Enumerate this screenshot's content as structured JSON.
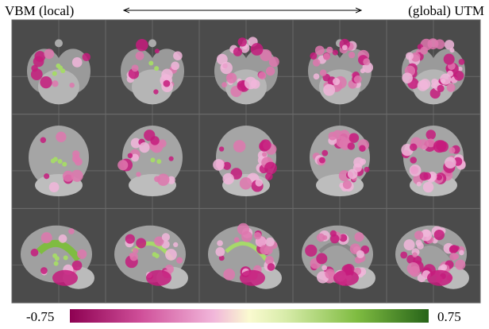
{
  "header": {
    "left": "VBM (local)",
    "right": "(global) UTM"
  },
  "colorbar": {
    "min_label": "-0.75",
    "max_label": "0.75"
  }
}
